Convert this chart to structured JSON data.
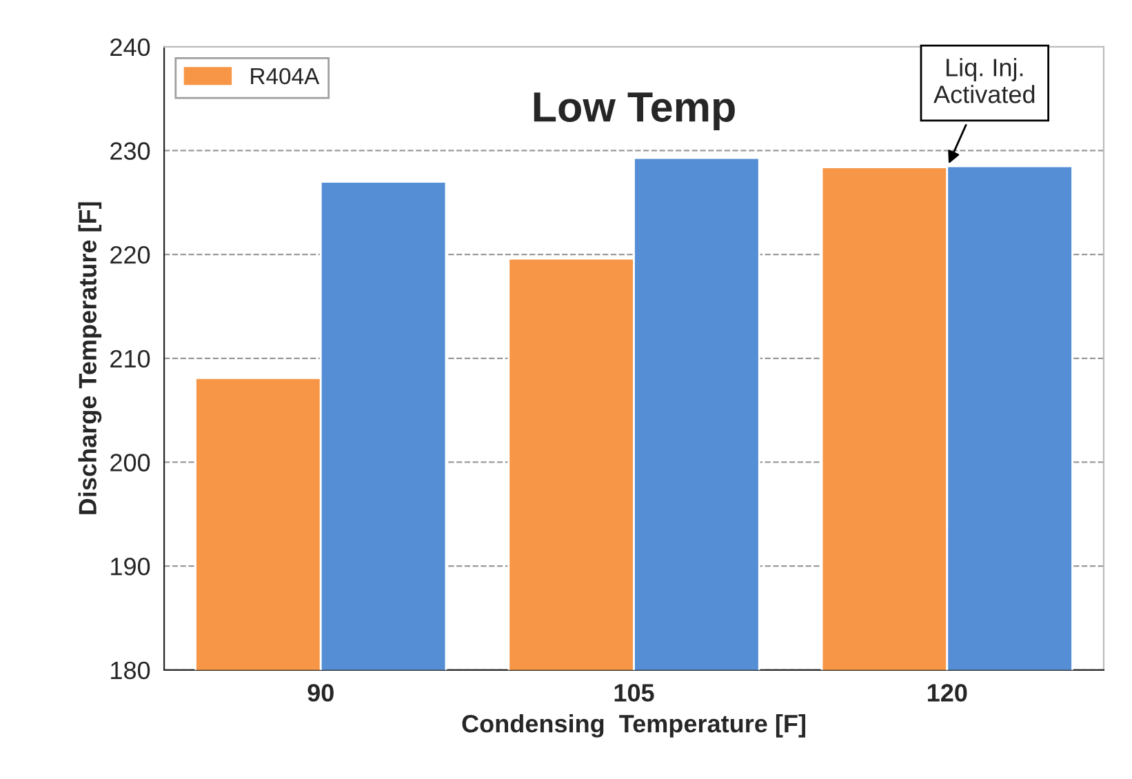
{
  "chart_data": {
    "type": "bar",
    "title": "Low Temp",
    "xlabel": "Condensing  Temperature [F]",
    "ylabel": "Discharge Temperature [F]",
    "categories": [
      "90",
      "105",
      "120"
    ],
    "series": [
      {
        "name": "R404A",
        "color": "#f79646",
        "values": [
          208.1,
          219.6,
          228.4
        ]
      },
      {
        "color": "#558ed5",
        "values": [
          227.0,
          229.3,
          228.5
        ]
      }
    ],
    "ylim": [
      180,
      240
    ],
    "yticks": [
      180,
      190,
      200,
      210,
      220,
      230,
      240
    ],
    "grid": "y",
    "legend": "top left",
    "annotations": [
      {
        "text": "Liq. Inj.\nActivated",
        "x": "120",
        "y": 228.4
      }
    ]
  }
}
